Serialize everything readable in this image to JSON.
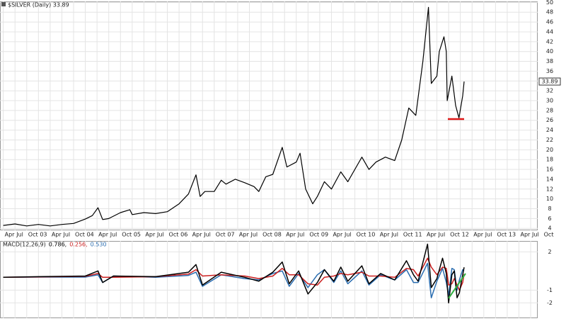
{
  "chart_data": [
    {
      "type": "line",
      "title": "$SILVER (Daily) 33.89",
      "grid": true,
      "last_value": 33.89,
      "xlim": [
        2002.18,
        2013.65
      ],
      "ylim": [
        3.6,
        50.2
      ],
      "yticks": [
        4,
        6,
        8,
        10,
        12,
        14,
        16,
        18,
        20,
        22,
        24,
        26,
        28,
        30,
        32,
        34,
        36,
        38,
        40,
        42,
        44,
        46,
        48,
        50
      ],
      "xticks": [
        {
          "value": 2002.25,
          "label": "Apr"
        },
        {
          "value": 2002.5,
          "label": "Jul"
        },
        {
          "value": 2002.75,
          "label": "Oct"
        },
        {
          "value": 2003,
          "label": "03"
        },
        {
          "value": 2003.25,
          "label": "Apr"
        },
        {
          "value": 2003.5,
          "label": "Jul"
        },
        {
          "value": 2003.75,
          "label": "Oct"
        },
        {
          "value": 2004,
          "label": "04"
        },
        {
          "value": 2004.25,
          "label": "Apr"
        },
        {
          "value": 2004.5,
          "label": "Jul"
        },
        {
          "value": 2004.75,
          "label": "Oct"
        },
        {
          "value": 2005,
          "label": "05"
        },
        {
          "value": 2005.25,
          "label": "Apr"
        },
        {
          "value": 2005.5,
          "label": "Jul"
        },
        {
          "value": 2005.75,
          "label": "Oct"
        },
        {
          "value": 2006,
          "label": "06"
        },
        {
          "value": 2006.25,
          "label": "Apr"
        },
        {
          "value": 2006.5,
          "label": "Jul"
        },
        {
          "value": 2006.75,
          "label": "Oct"
        },
        {
          "value": 2007,
          "label": "07"
        },
        {
          "value": 2007.25,
          "label": "Apr"
        },
        {
          "value": 2007.5,
          "label": "Jul"
        },
        {
          "value": 2007.75,
          "label": "Oct"
        },
        {
          "value": 2008,
          "label": "08"
        },
        {
          "value": 2008.25,
          "label": "Apr"
        },
        {
          "value": 2008.5,
          "label": "Jul"
        },
        {
          "value": 2008.75,
          "label": "Oct"
        },
        {
          "value": 2009,
          "label": "09"
        },
        {
          "value": 2009.25,
          "label": "Apr"
        },
        {
          "value": 2009.5,
          "label": "Jul"
        },
        {
          "value": 2009.75,
          "label": "Oct"
        },
        {
          "value": 2010,
          "label": "10"
        },
        {
          "value": 2010.25,
          "label": "Apr"
        },
        {
          "value": 2010.5,
          "label": "Jul"
        },
        {
          "value": 2010.75,
          "label": "Oct"
        },
        {
          "value": 2011,
          "label": "11"
        },
        {
          "value": 2011.25,
          "label": "Apr"
        },
        {
          "value": 2011.5,
          "label": "Jul"
        },
        {
          "value": 2011.75,
          "label": "Oct"
        },
        {
          "value": 2012,
          "label": "12"
        },
        {
          "value": 2012.25,
          "label": "Apr"
        },
        {
          "value": 2012.5,
          "label": "Jul"
        },
        {
          "value": 2012.75,
          "label": "Oct"
        },
        {
          "value": 2013,
          "label": "13"
        },
        {
          "value": 2013.25,
          "label": "Apr"
        },
        {
          "value": 2013.5,
          "label": "Jul"
        },
        {
          "value": 2013.75,
          "label": "Oct"
        }
      ],
      "x": [
        2002.25,
        2002.5,
        2002.75,
        2003.0,
        2003.25,
        2003.5,
        2003.75,
        2004.0,
        2004.15,
        2004.27,
        2004.37,
        2004.5,
        2004.75,
        2004.95,
        2005.0,
        2005.25,
        2005.5,
        2005.75,
        2006.0,
        2006.2,
        2006.36,
        2006.45,
        2006.55,
        2006.75,
        2006.9,
        2007.0,
        2007.2,
        2007.4,
        2007.6,
        2007.7,
        2007.85,
        2008.0,
        2008.2,
        2008.3,
        2008.5,
        2008.58,
        2008.7,
        2008.85,
        2008.95,
        2009.1,
        2009.25,
        2009.45,
        2009.6,
        2009.9,
        2010.05,
        2010.2,
        2010.4,
        2010.6,
        2010.75,
        2010.9,
        2011.05,
        2011.2,
        2011.32,
        2011.38,
        2011.5,
        2011.55,
        2011.65,
        2011.7,
        2011.72,
        2011.82,
        2011.9,
        2011.97,
        2012.05,
        2012.08
      ],
      "series": [
        {
          "color": "#000000",
          "values": [
            4.6,
            4.9,
            4.5,
            4.8,
            4.5,
            4.8,
            5.0,
            5.9,
            6.6,
            8.2,
            5.8,
            6.0,
            7.2,
            7.8,
            6.8,
            7.2,
            7.0,
            7.4,
            9.0,
            11,
            14.9,
            10.5,
            11.5,
            11.5,
            13.8,
            13,
            14,
            13.3,
            12.5,
            11.5,
            14.5,
            15,
            20.5,
            16.5,
            17.5,
            19.3,
            12,
            9,
            10.5,
            13.5,
            12,
            15.5,
            13.5,
            18.5,
            16,
            17.5,
            18.5,
            17.8,
            22,
            28.5,
            27,
            38,
            49,
            33.5,
            35,
            40,
            43,
            40,
            30,
            35,
            29,
            26.5,
            31,
            33.89
          ]
        }
      ]
    },
    {
      "type": "line",
      "title": "MACD(12,26,9)",
      "readout": [
        "0.786,",
        "0.256,",
        "0.530"
      ],
      "xlim": [
        2002.18,
        2013.65
      ],
      "ylim": [
        -3.2,
        2.85
      ],
      "yticks": [
        -2,
        -1,
        2
      ],
      "x": [
        2002.25,
        2003.0,
        2004.0,
        2004.27,
        2004.37,
        2004.6,
        2005.5,
        2006.2,
        2006.36,
        2006.5,
        2006.9,
        2007.4,
        2007.7,
        2008.0,
        2008.2,
        2008.35,
        2008.55,
        2008.75,
        2008.95,
        2009.1,
        2009.3,
        2009.45,
        2009.6,
        2009.9,
        2010.05,
        2010.3,
        2010.6,
        2010.85,
        2011.0,
        2011.1,
        2011.3,
        2011.38,
        2011.5,
        2011.62,
        2011.7,
        2011.75,
        2011.82,
        2011.87,
        2011.93,
        2011.98,
        2012.05,
        2012.08
      ],
      "series": [
        {
          "color": "#2a6db0",
          "values": [
            0,
            0.02,
            0.02,
            0.2,
            -0.4,
            0.1,
            0,
            0.15,
            0.4,
            -0.7,
            0.2,
            -0.1,
            -0.2,
            0.3,
            0.5,
            -0.7,
            0.3,
            -0.8,
            0.2,
            0.6,
            -0.4,
            0.5,
            -0.5,
            0.5,
            -0.6,
            0.2,
            -0.2,
            0.6,
            -0.4,
            -0.4,
            1.1,
            -1.6,
            -0.3,
            0.7,
            -0.4,
            -1.4,
            0.7,
            0.6,
            -1.0,
            -0.2,
            0.6,
            0.53
          ]
        },
        {
          "color": "#cc2020",
          "values": [
            0,
            0.03,
            0.08,
            0.3,
            0.0,
            0.0,
            0.05,
            0.25,
            0.6,
            0.1,
            0.2,
            0.1,
            -0.1,
            0.1,
            0.7,
            0.2,
            0.2,
            -0.5,
            -0.6,
            0.0,
            0.1,
            0.3,
            0.2,
            0.4,
            0.1,
            0.1,
            0.0,
            0.7,
            0.6,
            0.1,
            1.5,
            0.8,
            0.2,
            0.8,
            0.7,
            -0.6,
            -0.5,
            -0.1,
            -0.6,
            -1.0,
            -0.4,
            0.256
          ]
        },
        {
          "color": "#000000",
          "values": [
            0.0,
            0.05,
            0.1,
            0.5,
            -0.4,
            0.1,
            0.05,
            0.4,
            1.0,
            -0.6,
            0.4,
            0.0,
            -0.3,
            0.4,
            1.2,
            -0.5,
            0.5,
            -1.3,
            -0.4,
            0.6,
            -0.3,
            0.8,
            -0.3,
            0.9,
            -0.5,
            0.3,
            -0.2,
            1.3,
            0.2,
            -0.3,
            2.6,
            -0.8,
            -0.1,
            1.5,
            0.3,
            -2.0,
            0.2,
            0.5,
            -1.6,
            -1.2,
            0.2,
            0.786
          ]
        }
      ]
    }
  ]
}
